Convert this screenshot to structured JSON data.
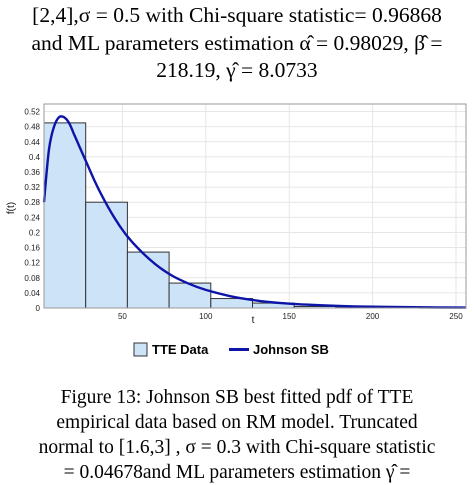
{
  "top_caption": {
    "line1": "[2,4],σ = 0.5 with Chi-square statistic= 0.96868",
    "line2": "and ML parameters estimation α̂ = 0.98029, β̂ =",
    "line3": "218.19, γ̂ = 8.0733"
  },
  "chart_data": {
    "type": "bar",
    "xlabel": "t",
    "ylabel": "f(t)",
    "xlim": [
      3,
      256
    ],
    "ylim": [
      0,
      0.54
    ],
    "x_ticks": [
      50,
      100,
      150,
      200,
      250
    ],
    "y_ticks": [
      0,
      0.04,
      0.08,
      0.12,
      0.16,
      0.2,
      0.24,
      0.28,
      0.32,
      0.36,
      0.4,
      0.44,
      0.48,
      0.52
    ],
    "grid": true,
    "legend_position": "bottom-center",
    "histogram": {
      "name": "TTE Data",
      "bin_edges": [
        3,
        28,
        53,
        78,
        103,
        128,
        153,
        178,
        203,
        228,
        253
      ],
      "values": [
        0.49,
        0.28,
        0.148,
        0.066,
        0.025,
        0.013,
        0.004,
        0.003,
        0.002,
        0.001
      ]
    },
    "curve": {
      "name": "Johnson SB",
      "x": [
        3,
        6,
        9,
        12,
        15,
        18,
        21,
        24,
        28,
        33,
        38,
        45,
        52,
        60,
        70,
        80,
        90,
        100,
        115,
        130,
        145,
        160,
        180,
        200,
        225,
        256
      ],
      "y": [
        0.28,
        0.42,
        0.48,
        0.505,
        0.505,
        0.49,
        0.46,
        0.43,
        0.39,
        0.34,
        0.295,
        0.24,
        0.195,
        0.155,
        0.115,
        0.085,
        0.064,
        0.048,
        0.031,
        0.02,
        0.013,
        0.009,
        0.0055,
        0.0035,
        0.002,
        0.001
      ]
    },
    "colors": {
      "bar_fill": "#cde3f8",
      "bar_stroke": "#333333",
      "curve": "#0d14a8"
    }
  },
  "bottom_caption": {
    "line1": "Figure 13: Johnson SB best fitted pdf of TTE",
    "line2": "empirical data based on RM model. Truncated",
    "line3": "normal to [1.6,3] , σ = 0.3 with Chi-square statistic",
    "line4": "= 0.04678and ML parameters estimation γ̂ ="
  }
}
